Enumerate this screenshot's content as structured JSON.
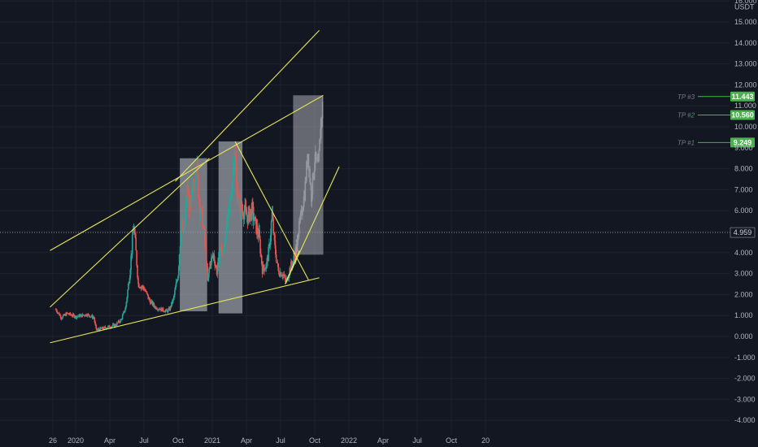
{
  "chart_data": {
    "type": "candlestick",
    "currency": "USDT",
    "y_ticks": [
      "16.000",
      "15.000",
      "14.000",
      "13.000",
      "12.000",
      "11.000",
      "10.000",
      "9.000",
      "8.000",
      "7.000",
      "6.000",
      "5.000",
      "4.000",
      "3.000",
      "2.000",
      "1.000",
      "0.000",
      "-1.000",
      "-2.000",
      "-3.000",
      "-4.000"
    ],
    "x_ticks": [
      "26",
      "2020",
      "Apr",
      "Jul",
      "Oct",
      "2021",
      "Apr",
      "Jul",
      "Oct",
      "2022",
      "Apr",
      "Jul",
      "Oct",
      "20"
    ],
    "ylim": [
      -4.6,
      16.2
    ],
    "current_price": "4.959",
    "colors": {
      "up": "#26a69a",
      "down": "#ef5350",
      "trendline": "#e6e65a",
      "target": "#4caf50",
      "background": "#131722",
      "grid": "#1e222d",
      "projection_box": "#c9ccd3",
      "projection_path": "#9598a1"
    },
    "price_path": [
      [
        0.5,
        1.3
      ],
      [
        1.5,
        0.9
      ],
      [
        2.5,
        1.1
      ],
      [
        4,
        0.95
      ],
      [
        6,
        1.05
      ],
      [
        7.2,
        0.9
      ],
      [
        7.6,
        0.3
      ],
      [
        9,
        0.4
      ],
      [
        11,
        0.55
      ],
      [
        12,
        0.8
      ],
      [
        12.8,
        1.4
      ],
      [
        13.5,
        3.0
      ],
      [
        14.2,
        5.3
      ],
      [
        14.6,
        4.0
      ],
      [
        15,
        2.5
      ],
      [
        16,
        2.3
      ],
      [
        17,
        1.7
      ],
      [
        18,
        1.4
      ],
      [
        19,
        1.3
      ],
      [
        20,
        1.2
      ],
      [
        20.5,
        1.3
      ],
      [
        21.2,
        1.8
      ],
      [
        22,
        3.0
      ],
      [
        22.6,
        5.5
      ],
      [
        23,
        4.8
      ],
      [
        23.6,
        7.0
      ],
      [
        24.2,
        6.0
      ],
      [
        24.8,
        7.5
      ],
      [
        25.2,
        8.3
      ],
      [
        25.8,
        6.2
      ],
      [
        26.3,
        5.5
      ],
      [
        26.8,
        4.2
      ],
      [
        27.2,
        2.6
      ],
      [
        27.6,
        3.5
      ],
      [
        28.2,
        3.9
      ],
      [
        28.8,
        3.1
      ],
      [
        29.4,
        4.2
      ],
      [
        29.9,
        3.9
      ],
      [
        30.5,
        5.2
      ],
      [
        31,
        6.0
      ],
      [
        31.5,
        7.5
      ],
      [
        31.9,
        9.1
      ],
      [
        32.3,
        7.0
      ],
      [
        32.8,
        6.2
      ],
      [
        33.5,
        6.0
      ],
      [
        34.2,
        5.7
      ],
      [
        35,
        6.0
      ],
      [
        35.6,
        5.3
      ],
      [
        36.2,
        4.8
      ],
      [
        36.8,
        3.2
      ],
      [
        37.5,
        3.4
      ],
      [
        38,
        4.2
      ],
      [
        38.5,
        5.8
      ],
      [
        39,
        4.2
      ],
      [
        39.6,
        3.1
      ],
      [
        40.3,
        3.0
      ],
      [
        41,
        2.6
      ],
      [
        41.6,
        3.2
      ],
      [
        42.2,
        3.6
      ],
      [
        42.8,
        4.2
      ],
      [
        43.2,
        4.8
      ]
    ],
    "projection": {
      "box_x": [
        42.2,
        47.5
      ],
      "box_y": [
        3.9,
        11.5
      ],
      "path": [
        [
          42.8,
          4.5
        ],
        [
          43.5,
          5.6
        ],
        [
          44.2,
          6.8
        ],
        [
          44.8,
          8.8
        ],
        [
          45.4,
          6.7
        ],
        [
          46,
          8.5
        ],
        [
          46.6,
          8.0
        ],
        [
          47.1,
          10.3
        ],
        [
          47.5,
          11.3
        ]
      ]
    },
    "range_boxes": [
      {
        "x": [
          22.3,
          27.1
        ],
        "y": [
          1.2,
          8.5
        ]
      },
      {
        "x": [
          29.1,
          33.3
        ],
        "y": [
          1.1,
          9.3
        ]
      }
    ],
    "trendlines": [
      {
        "from": [
          -0.5,
          -0.3
        ],
        "to": [
          46.8,
          2.8
        ]
      },
      {
        "from": [
          -0.5,
          1.4
        ],
        "to": [
          27.5,
          8.5
        ]
      },
      {
        "from": [
          -0.5,
          4.1
        ],
        "to": [
          47.5,
          11.5
        ]
      },
      {
        "from": [
          21.5,
          7.4
        ],
        "to": [
          46.8,
          14.6
        ]
      },
      {
        "from": [
          32,
          9.3
        ],
        "to": [
          44.9,
          2.7
        ]
      },
      {
        "from": [
          40.8,
          2.5
        ],
        "to": [
          50.3,
          8.1
        ]
      },
      {
        "from": [
          40.8,
          2.5
        ],
        "to": [
          43.3,
          4.1
        ]
      }
    ],
    "targets": [
      {
        "label": "TP #3",
        "value": "11.443"
      },
      {
        "label": "TP #2",
        "value": "10.560"
      },
      {
        "label": "TP #1",
        "value": "9.249"
      }
    ]
  }
}
